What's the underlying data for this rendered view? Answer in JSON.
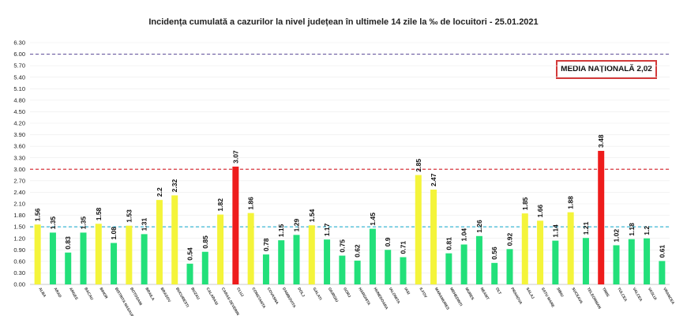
{
  "chart_data": {
    "type": "bar",
    "title": "Incidența cumulată a cazurilor la nivel județean în ultimele 14 zile la ‰ de locuitori - 25.01.2021",
    "categories": [
      "ALBA",
      "ARAD",
      "ARGES",
      "BACAU",
      "BIHOR",
      "BISTRITA NASAUD",
      "BOTOSANI",
      "BRAILA",
      "BRASOV",
      "BUCURESTI",
      "BUZAU",
      "CALARASI",
      "CARAS-SEVERIN",
      "CLUJ",
      "CONSTANTA",
      "COVASNA",
      "DAMBOVITA",
      "DOLJ",
      "GALATI",
      "GIURGIU",
      "GORJ",
      "HARGHITA",
      "HUNEDOARA",
      "IALOMITA",
      "IASI",
      "ILFOV",
      "MARAMURES",
      "MEHEDINTI",
      "MURES",
      "NEAMT",
      "OLT",
      "PRAHOVA",
      "SALAJ",
      "SATU MARE",
      "SIBIU",
      "SUCEAVA",
      "TELEORMAN",
      "TIMIS",
      "TULCEA",
      "VALCEA",
      "VASLUI",
      "VRANCEA"
    ],
    "values": [
      1.56,
      1.35,
      0.83,
      1.35,
      1.58,
      1.08,
      1.53,
      1.31,
      2.2,
      2.32,
      0.54,
      0.85,
      1.82,
      3.07,
      1.86,
      0.78,
      1.15,
      1.29,
      1.54,
      1.17,
      0.75,
      0.62,
      1.45,
      0.9,
      0.71,
      2.85,
      2.47,
      0.81,
      1.04,
      1.26,
      0.56,
      0.92,
      1.85,
      1.66,
      1.14,
      1.88,
      1.21,
      3.48,
      1.02,
      1.18,
      1.2,
      0.61
    ],
    "value_labels": [
      "1.56",
      "1.35",
      "0.83",
      "1.35",
      "1.58",
      "1.08",
      "1.53",
      "1.31",
      "2.2",
      "2.32",
      "0.54",
      "0.85",
      "1.82",
      "3.07",
      "1.86",
      "0.78",
      "1.15",
      "1.29",
      "1.54",
      "1.17",
      "0.75",
      "0.62",
      "1.45",
      "0.9",
      "0.71",
      "2.85",
      "2.47",
      "0.81",
      "1.04",
      "1.26",
      "0.56",
      "0.92",
      "1.85",
      "1.66",
      "1.14",
      "1.88",
      "1.21",
      "3.48",
      "1.02",
      "1.18",
      "1.2",
      "0.61"
    ],
    "yticks": [
      "0.00",
      "0.30",
      "0.60",
      "0.90",
      "1.20",
      "1.50",
      "1.80",
      "2.10",
      "2.40",
      "2.70",
      "3.00",
      "3.30",
      "3.60",
      "3.90",
      "4.20",
      "4.50",
      "4.80",
      "5.10",
      "5.40",
      "5.70",
      "6.00",
      "6.30"
    ],
    "ylim": [
      0,
      6.3
    ],
    "reference_lines": [
      {
        "value": 1.5,
        "color": "#3bb7d4"
      },
      {
        "value": 3.0,
        "color": "#d9363e"
      },
      {
        "value": 6.0,
        "color": "#6a5aa0"
      }
    ],
    "colors": {
      "green": "#22e07a",
      "yellow": "#f4f43a",
      "red": "#ee1c1c"
    },
    "color_rule": "green < 1.5 <= yellow < 3.0 <= red",
    "annotation": {
      "label": "MEDIA NAȚIONALĂ",
      "value": "2,02"
    }
  }
}
